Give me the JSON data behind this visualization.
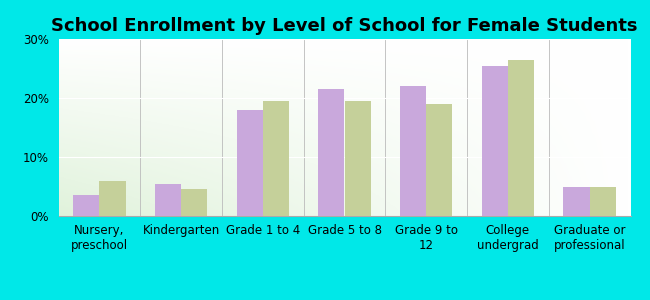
{
  "title": "School Enrollment by Level of School for Female Students",
  "categories": [
    "Nursery,\npreschool",
    "Kindergarten",
    "Grade 1 to 4",
    "Grade 5 to 8",
    "Grade 9 to\n12",
    "College\nundergrad",
    "Graduate or\nprofessional"
  ],
  "north_providence": [
    3.5,
    5.5,
    18.0,
    21.5,
    22.0,
    25.5,
    5.0
  ],
  "rhode_island": [
    6.0,
    4.5,
    19.5,
    19.5,
    19.0,
    26.5,
    5.0
  ],
  "color_np": "#c9a8dc",
  "color_ri": "#c5d09a",
  "ylim": [
    0,
    30
  ],
  "yticks": [
    0,
    10,
    20,
    30
  ],
  "ytick_labels": [
    "0%",
    "10%",
    "20%",
    "30%"
  ],
  "background_outer": "#00e8e8",
  "title_fontsize": 13,
  "tick_fontsize": 8.5,
  "bar_width": 0.32
}
